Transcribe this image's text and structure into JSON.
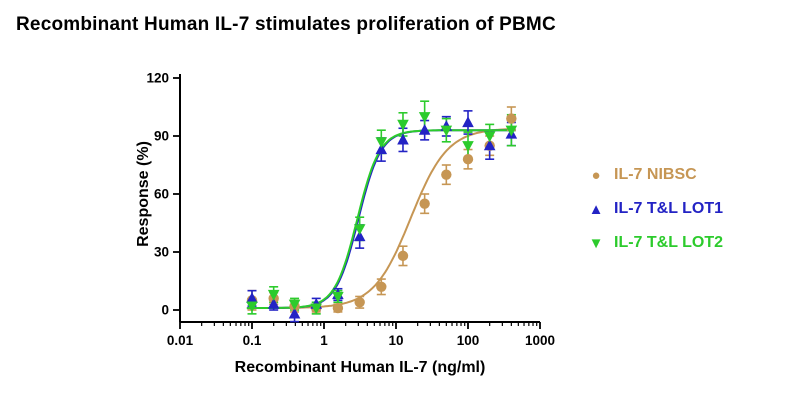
{
  "chart_data": {
    "type": "scatter",
    "title": "Recombinant Human IL-7 stimulates proliferation of PBMC",
    "xlabel": "Recombinant Human IL-7 (ng/ml)",
    "ylabel": "Response (%)",
    "x_scale": "log10",
    "xlim": [
      0.01,
      1000
    ],
    "ylim": [
      0,
      120
    ],
    "y_ticks": [
      0,
      30,
      60,
      90,
      120
    ],
    "x_tick_values": [
      0.01,
      0.1,
      1,
      10,
      100,
      1000
    ],
    "x_tick_labels": [
      "0.01",
      "0.1",
      "1",
      "10",
      "100",
      "1000"
    ],
    "grid": false,
    "legend_position": "right",
    "x": [
      0.1,
      0.2,
      0.39,
      0.78,
      1.56,
      3.13,
      6.25,
      12.5,
      25,
      50,
      100,
      200,
      400
    ],
    "series": [
      {
        "name": "IL-7 NIBSC",
        "marker": "circle",
        "color": "#C69654",
        "values": [
          5,
          6,
          2,
          1,
          1,
          4,
          12,
          28,
          55,
          70,
          78,
          85,
          99
        ],
        "errors": [
          5,
          3,
          3,
          2,
          2,
          3,
          4,
          5,
          5,
          5,
          5,
          5,
          6
        ],
        "fit": {
          "bottom": 1,
          "top": 94,
          "ec50": 16,
          "hill": 1.7
        }
      },
      {
        "name": "IL-7 T&L LOT1",
        "marker": "triangle-up",
        "color": "#2323C4",
        "values": [
          6,
          3,
          -2,
          3,
          8,
          38,
          83,
          88,
          93,
          95,
          97,
          85,
          91
        ],
        "errors": [
          4,
          3,
          4,
          3,
          3,
          6,
          6,
          6,
          5,
          5,
          6,
          7,
          6
        ],
        "fit": {
          "bottom": 1,
          "top": 93,
          "ec50": 3.0,
          "hill": 2.8
        }
      },
      {
        "name": "IL-7 T&L LOT2",
        "marker": "triangle-down",
        "color": "#2CCB2C",
        "values": [
          2,
          8,
          3,
          1,
          7,
          42,
          87,
          96,
          100,
          93,
          85,
          90,
          93
        ],
        "errors": [
          4,
          4,
          3,
          3,
          3,
          6,
          6,
          6,
          8,
          6,
          7,
          6,
          8
        ],
        "fit": {
          "bottom": 1,
          "top": 93,
          "ec50": 2.9,
          "hill": 2.8
        }
      }
    ]
  }
}
